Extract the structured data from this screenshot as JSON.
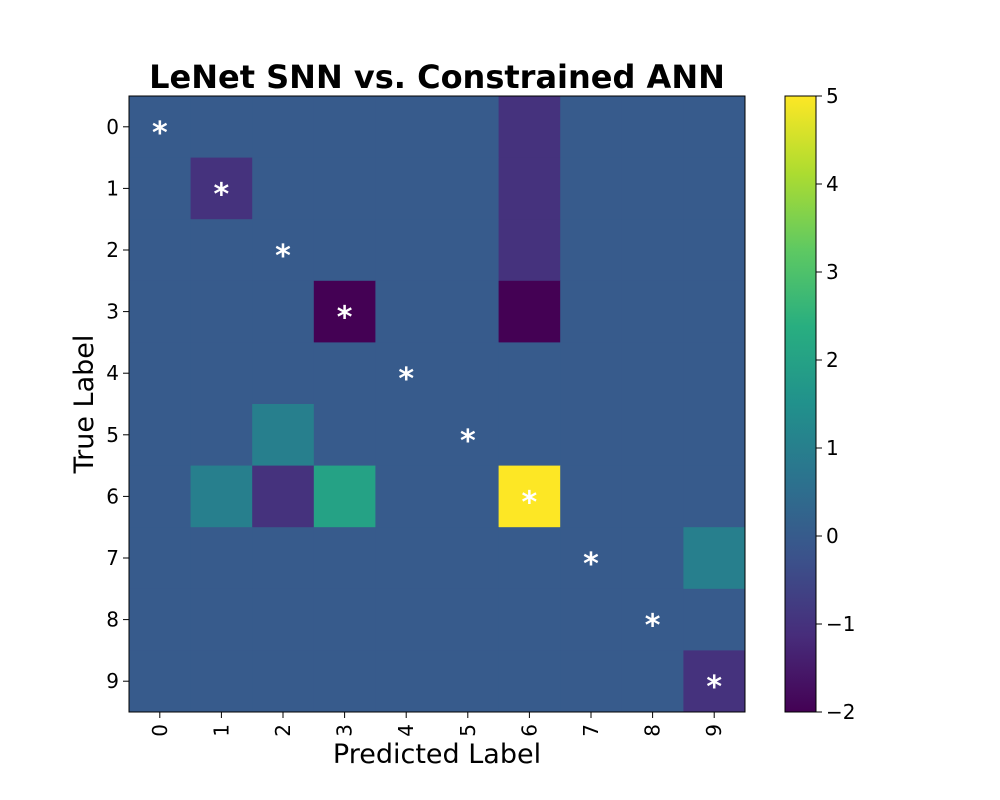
{
  "chart_data": {
    "type": "heatmap",
    "title": "LeNet SNN vs. Constrained ANN",
    "xlabel": "Predicted Label",
    "ylabel": "True Label",
    "x_categories": [
      "0",
      "1",
      "2",
      "3",
      "4",
      "5",
      "6",
      "7",
      "8",
      "9"
    ],
    "y_categories": [
      "0",
      "1",
      "2",
      "3",
      "4",
      "5",
      "6",
      "7",
      "8",
      "9"
    ],
    "values": [
      [
        0,
        0,
        0,
        0,
        0,
        0,
        -1,
        0,
        0,
        0
      ],
      [
        0,
        -1,
        0,
        0,
        0,
        0,
        -1,
        0,
        0,
        0
      ],
      [
        0,
        0,
        0,
        0,
        0,
        0,
        -1,
        0,
        0,
        0
      ],
      [
        0,
        0,
        0,
        -2,
        0,
        0,
        -2,
        0,
        0,
        0
      ],
      [
        0,
        0,
        0,
        0,
        0,
        0,
        0,
        0,
        0,
        0
      ],
      [
        0,
        0,
        1,
        0,
        0,
        0,
        0,
        0,
        0,
        0
      ],
      [
        0,
        1,
        -1,
        2,
        0,
        0,
        5,
        0,
        0,
        0
      ],
      [
        0,
        0,
        0,
        0,
        0,
        0,
        0,
        0,
        0,
        1
      ],
      [
        0,
        0,
        0,
        0,
        0,
        0,
        0,
        0,
        0,
        0
      ],
      [
        0,
        0,
        0,
        0,
        0,
        0,
        0,
        0,
        0,
        -1
      ]
    ],
    "marker_symbol": "*",
    "markers": [
      [
        0,
        0
      ],
      [
        1,
        1
      ],
      [
        2,
        2
      ],
      [
        3,
        3
      ],
      [
        4,
        4
      ],
      [
        5,
        5
      ],
      [
        6,
        6
      ],
      [
        7,
        7
      ],
      [
        8,
        8
      ],
      [
        9,
        9
      ]
    ],
    "colorbar": {
      "vmin": -2,
      "vmax": 5,
      "ticks": [
        -2,
        -1,
        0,
        1,
        2,
        3,
        4,
        5
      ],
      "tick_labels": [
        "−2",
        "−1",
        "0",
        "1",
        "2",
        "3",
        "4",
        "5"
      ],
      "colormap": "viridis"
    }
  }
}
